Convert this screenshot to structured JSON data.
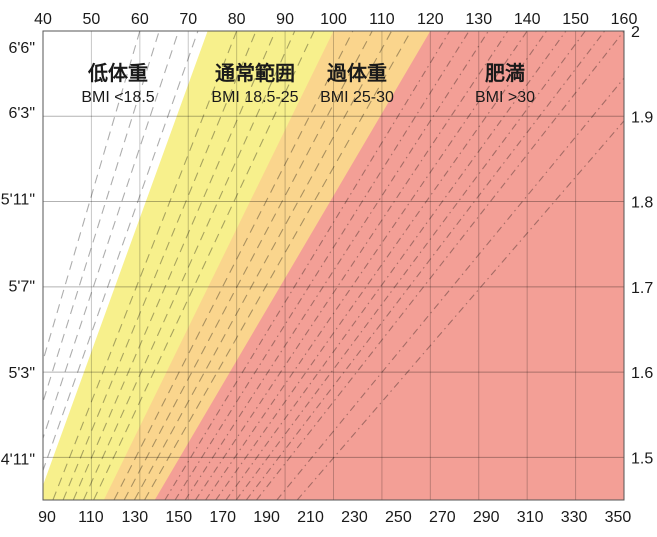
{
  "chart_data": {
    "type": "area",
    "top_axis": {
      "unit_hint": "kg",
      "min": 40,
      "max": 160,
      "ticks": [
        "40",
        "50",
        "60",
        "70",
        "80",
        "90",
        "100",
        "110",
        "120",
        "130",
        "140",
        "150",
        "160"
      ]
    },
    "bottom_axis": {
      "unit_hint": "lb",
      "ticks": [
        "90",
        "110",
        "130",
        "150",
        "170",
        "190",
        "210",
        "230",
        "250",
        "270",
        "290",
        "310",
        "330",
        "350"
      ]
    },
    "left_axis": {
      "ticks": [
        "6'6\"",
        "6'3\"",
        "5'11\"",
        "5'7\"",
        "5'3\"",
        "4'11\""
      ]
    },
    "right_axis": {
      "min": 1.45,
      "max": 2.0,
      "ticks": [
        "2",
        "1.9",
        "1.8",
        "1.7",
        "1.6",
        "1.5"
      ]
    },
    "bmi_boundaries": [
      18.5,
      25,
      30
    ],
    "dashed_bmi_lines": [
      15,
      16,
      17,
      18,
      20,
      21,
      22,
      23,
      24,
      26,
      27,
      28,
      29,
      31,
      32,
      33,
      34,
      35,
      36,
      37,
      38,
      39,
      40,
      42,
      44
    ],
    "categories": [
      {
        "name": "低体重",
        "range": "BMI <18.5",
        "color": "#ffffff"
      },
      {
        "name": "通常範囲",
        "range": "BMI 18.5-25",
        "color": "#f7f08c"
      },
      {
        "name": "過体重",
        "range": "BMI 25-30",
        "color": "#fad58d"
      },
      {
        "name": "肥満",
        "range": "BMI >30",
        "color": "#f39f96"
      }
    ],
    "grid": true
  }
}
